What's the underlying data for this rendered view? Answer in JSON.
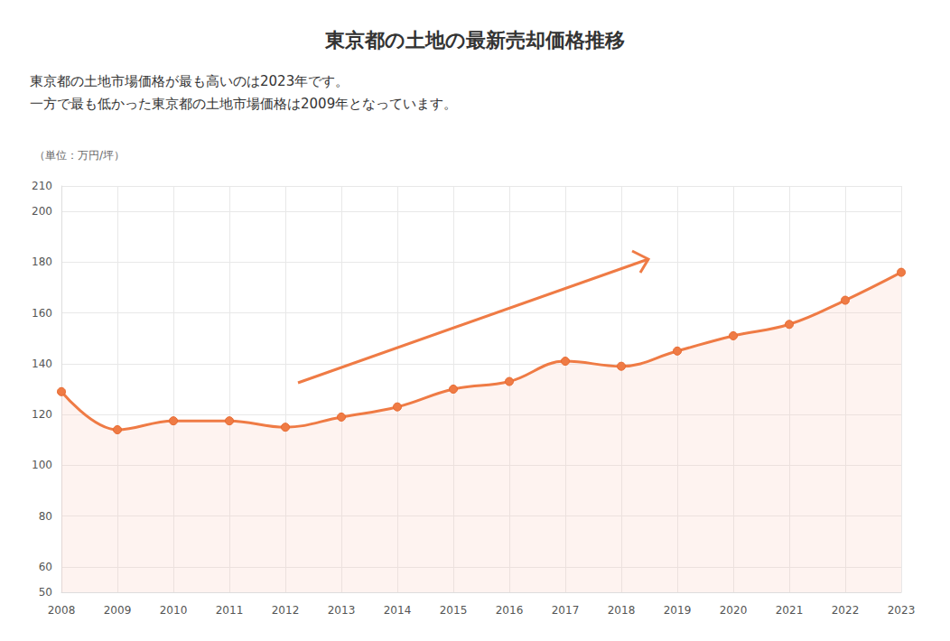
{
  "chart_data": {
    "type": "line",
    "title": "東京都の土地の最新売却価格推移",
    "subtitle": [
      "東京都の土地市場価格が最も高いのは2023年です。",
      "一方で最も低かった東京都の土地市場価格は2009年となっています。"
    ],
    "ylabel": "（単位：万円/坪）",
    "categories": [
      "2008",
      "2009",
      "2010",
      "2011",
      "2012",
      "2013",
      "2014",
      "2015",
      "2016",
      "2017",
      "2018",
      "2019",
      "2020",
      "2021",
      "2022",
      "2023"
    ],
    "values": [
      129,
      114,
      117.5,
      117.5,
      115,
      119,
      123,
      130,
      133,
      141,
      139,
      145,
      151,
      155.5,
      165,
      176
    ],
    "color": "#ef7b45",
    "ylim": [
      50,
      210
    ],
    "yticks": [
      50,
      60,
      80,
      100,
      120,
      140,
      160,
      180,
      200,
      210
    ],
    "grid": true,
    "marker": "circle"
  }
}
